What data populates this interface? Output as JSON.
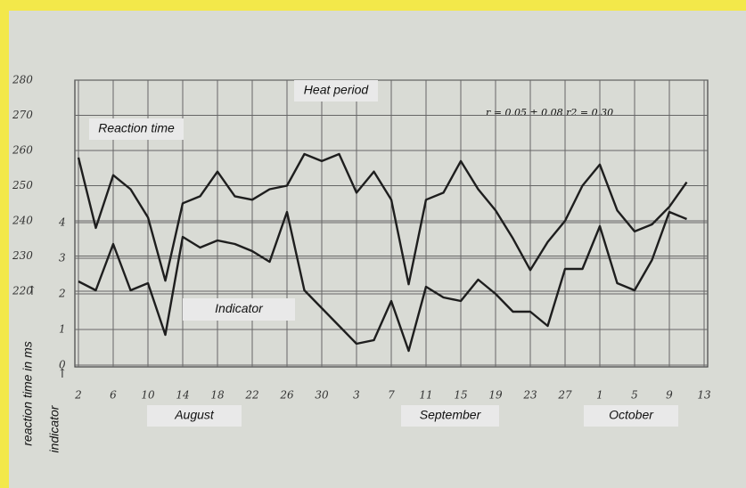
{
  "chart_data": {
    "type": "line",
    "annotations": [
      "Heat period",
      "Reaction time",
      "Indicator"
    ],
    "stat_note": "r = 0.05 ± 0.08    r2 = 0.30",
    "ylabel": "reaction time in ms",
    "y2label": "indicator",
    "months": [
      "August",
      "September",
      "October"
    ],
    "categories": [
      "2",
      null,
      "6",
      null,
      "10",
      null,
      "14",
      null,
      "18",
      null,
      "22",
      null,
      "26",
      null,
      "30",
      null,
      "3",
      null,
      "7",
      null,
      "11",
      null,
      "15",
      null,
      "19",
      null,
      "23",
      null,
      "27",
      null,
      "1",
      null,
      "5",
      null,
      "9",
      null,
      "13"
    ],
    "series": [
      {
        "name": "Reaction time",
        "color": "#1e1e1e",
        "axis": "y",
        "values": [
          258,
          238,
          253,
          249,
          241,
          223,
          245,
          247,
          254,
          247,
          246,
          249,
          250,
          259,
          257,
          259,
          248,
          254,
          246,
          222,
          246,
          248,
          257,
          249,
          243,
          235,
          226,
          234,
          240,
          250,
          256,
          243,
          237,
          239,
          244,
          251,
          null
        ]
      },
      {
        "name": "Indicator",
        "color": "#1e1e1e",
        "axis": "y2",
        "values": [
          2.35,
          2.1,
          3.4,
          2.1,
          2.3,
          0.85,
          3.6,
          3.3,
          3.5,
          3.4,
          3.2,
          2.9,
          4.3,
          2.1,
          1.6,
          1.1,
          0.6,
          0.7,
          1.8,
          0.4,
          2.2,
          1.9,
          1.8,
          2.4,
          2.0,
          1.5,
          1.5,
          1.1,
          2.7,
          2.7,
          3.9,
          2.3,
          2.1,
          2.95,
          4.3,
          4.1,
          null
        ]
      }
    ],
    "ylim": [
      198.5,
      280
    ],
    "yticks": [
      220,
      230,
      240,
      250,
      260,
      270,
      280
    ],
    "y2lim": [
      -0.05,
      8
    ],
    "y2ticks": [
      0,
      1,
      2,
      3,
      4
    ],
    "grid": true
  }
}
